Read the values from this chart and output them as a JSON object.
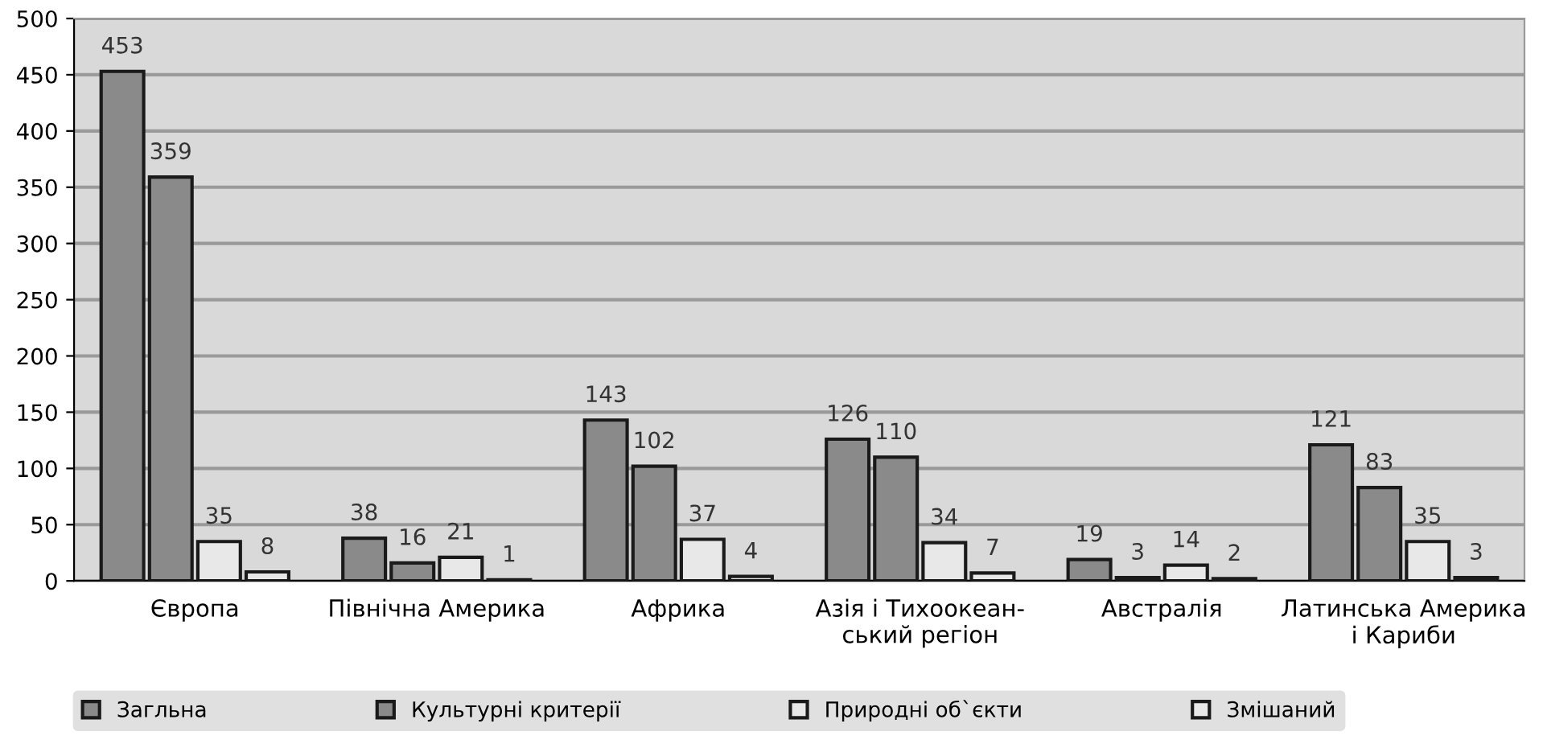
{
  "chart_data": {
    "type": "bar",
    "categories": [
      "Європа",
      "Північна Америка",
      "Африка",
      "Азія і Тихоокеан-\nський регіон",
      "Австралія",
      "Латинська Америка\nі Кариби"
    ],
    "series": [
      {
        "name": "Загльна",
        "color": "#8a8a8a",
        "values": [
          453,
          38,
          143,
          126,
          19,
          121
        ]
      },
      {
        "name": "Культурні критерії",
        "color": "#8a8a8a",
        "values": [
          359,
          16,
          102,
          110,
          3,
          83
        ]
      },
      {
        "name": "Природні об`єкти",
        "color": "#e8e8e8",
        "values": [
          35,
          21,
          37,
          34,
          14,
          35
        ]
      },
      {
        "name": "Змішаний",
        "color": "#e8e8e8",
        "values": [
          8,
          1,
          4,
          7,
          2,
          3
        ]
      }
    ],
    "ylim": [
      0,
      500
    ],
    "yticks": [
      0,
      50,
      100,
      150,
      200,
      250,
      300,
      350,
      400,
      450,
      500
    ],
    "grid": "y",
    "legend": "bottom",
    "data_labels": true
  }
}
